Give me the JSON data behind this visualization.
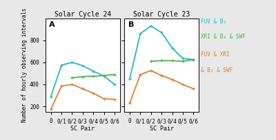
{
  "title_left": "Solar Cycle 24",
  "title_right": "Solar Cycle 23",
  "xlabel": "SC Pair",
  "ylabel": "Number of hourly observing intervals",
  "x_labels": [
    "0",
    "0/1",
    "0/2",
    "0/3",
    "0/4",
    "0/5",
    "0/6"
  ],
  "x_values": [
    0,
    1,
    2,
    3,
    4,
    5,
    6
  ],
  "sc24": {
    "blue": [
      290,
      575,
      600,
      570,
      520,
      475,
      400
    ],
    "green": [
      null,
      null,
      460,
      470,
      475,
      480,
      490
    ],
    "orange": [
      175,
      385,
      400,
      360,
      320,
      270,
      265
    ]
  },
  "sc23": {
    "blue": [
      450,
      860,
      930,
      870,
      730,
      635,
      625
    ],
    "green": [
      null,
      null,
      610,
      615,
      615,
      610,
      625
    ],
    "orange": [
      230,
      490,
      525,
      480,
      445,
      400,
      360
    ]
  },
  "blue_color": "#29b8c8",
  "green_color": "#50b050",
  "orange_color": "#e08030",
  "bg_color": "#ffffff",
  "fig_bg_color": "#e8e8e8",
  "ylim": [
    150,
    1000
  ],
  "yticks": [
    200,
    400,
    600,
    800
  ],
  "panel_labels": [
    "A",
    "B"
  ],
  "legend_line1_color": "#29b8c8",
  "legend_line2_color": "#50b050",
  "legend_line3_color": "#e08030",
  "legend_line1": "FUV & B₂",
  "legend_line2": "XRI & B₂ & SWF",
  "legend_line3": "FUV & XRI",
  "legend_line4": "& B₂ & SWF"
}
